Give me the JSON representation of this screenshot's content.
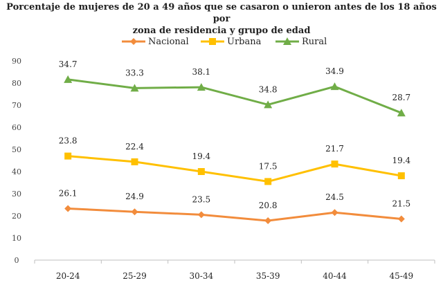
{
  "chart_data": {
    "type": "line",
    "title": "Porcentaje de mujeres de 20 a 49 años que se casaron o unieron antes de los 18 años por zona de residencia y grupo de edad",
    "title_lines": [
      "Porcentaje de mujeres de 20 a 49 años que se casaron o unieron antes de los 18 años por",
      "zona de residencia y grupo de edad"
    ],
    "xlabel": "",
    "ylabel": "",
    "categories": [
      "20-24",
      "25-29",
      "30-34",
      "35-39",
      "40-44",
      "45-49"
    ],
    "y_axis_ticks": [
      0,
      10,
      20,
      30,
      40,
      50,
      60,
      70,
      80,
      90
    ],
    "ylim": [
      0,
      90
    ],
    "grid": false,
    "legend_position": "top",
    "series": [
      {
        "name": "Nacional",
        "color": "#f28c3c",
        "marker": "diamond",
        "values": [
          26.1,
          24.9,
          23.5,
          20.8,
          24.5,
          21.5
        ],
        "plot_values": [
          23.3,
          21.8,
          20.5,
          17.8,
          21.5,
          18.6
        ]
      },
      {
        "name": "Urbana",
        "color": "#ffc000",
        "marker": "square",
        "values": [
          23.8,
          22.4,
          19.4,
          17.5,
          21.7,
          19.4
        ],
        "plot_values": [
          47.0,
          44.4,
          40.0,
          35.5,
          43.4,
          38.1
        ]
      },
      {
        "name": "Rural",
        "color": "#70ad47",
        "marker": "triangle",
        "values": [
          34.7,
          33.3,
          38.1,
          34.8,
          34.9,
          28.7
        ],
        "plot_values": [
          81.6,
          77.7,
          78.1,
          70.2,
          78.4,
          66.5
        ]
      }
    ]
  }
}
